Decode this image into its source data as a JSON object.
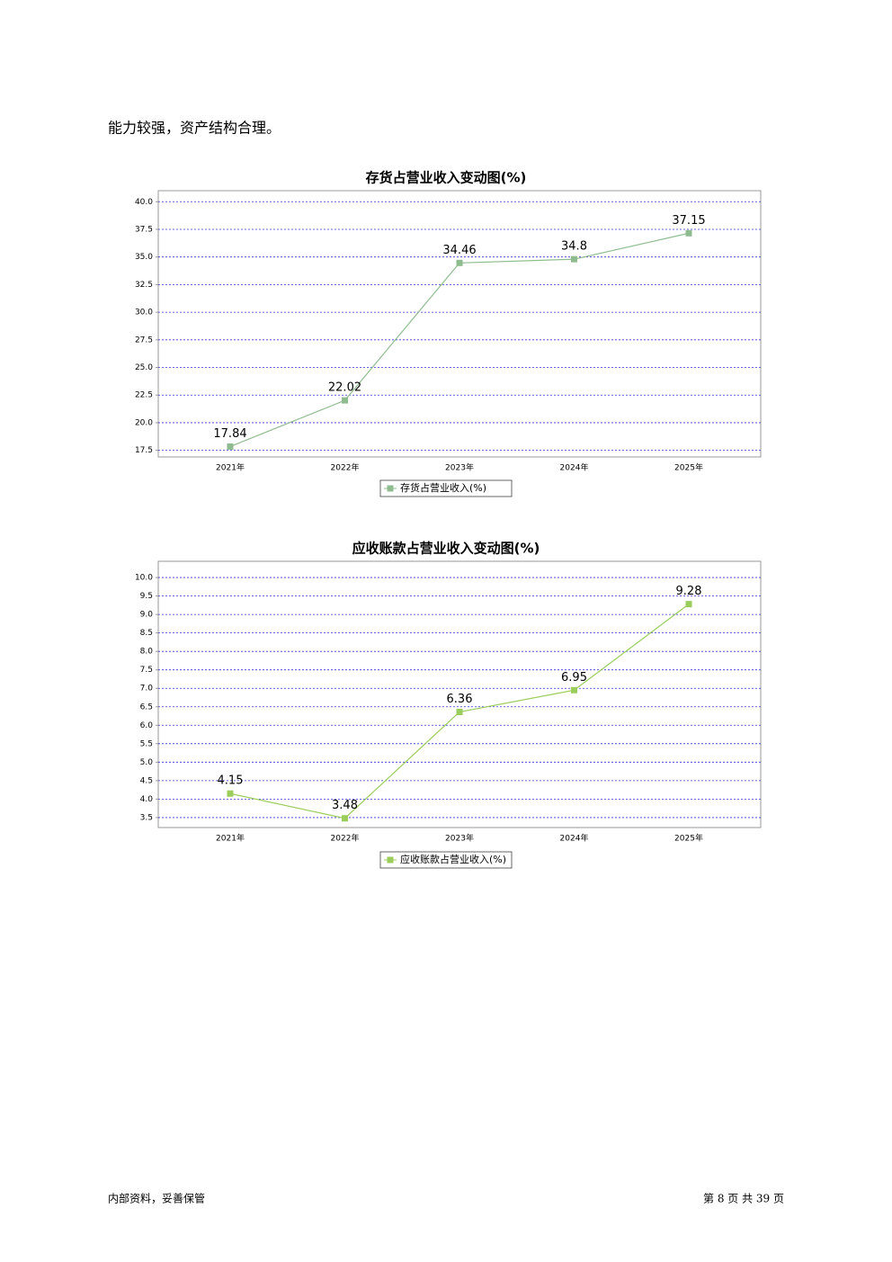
{
  "body": {
    "text": "能力较强，资产结构合理。"
  },
  "chart_data": [
    {
      "type": "line",
      "title": "存货占营业收入变动图(%)",
      "categories": [
        "2021年",
        "2022年",
        "2023年",
        "2024年",
        "2025年"
      ],
      "series": [
        {
          "name": "存货占营业收入(%)",
          "color": "#8fbc8f",
          "values": [
            17.84,
            22.02,
            34.46,
            34.8,
            37.15
          ]
        }
      ],
      "ylim": [
        16.9,
        41.0
      ],
      "yticks": [
        17.5,
        {
          "value": 20,
          "label": "20.0"
        },
        22.5,
        {
          "value": 25,
          "label": "25.0"
        },
        27.5,
        {
          "value": 30,
          "label": "30.0"
        },
        32.5,
        {
          "value": 35,
          "label": "35.0"
        },
        37.5,
        {
          "value": 40,
          "label": "40.0"
        }
      ],
      "grid": true,
      "legend": "bottom"
    },
    {
      "type": "line",
      "title": "应收账款占营业收入变动图(%)",
      "categories": [
        "2021年",
        "2022年",
        "2023年",
        "2024年",
        "2025年"
      ],
      "series": [
        {
          "name": "应收账款占营业收入(%)",
          "color": "#9acd59",
          "values": [
            4.15,
            3.48,
            6.36,
            6.95,
            9.28
          ]
        }
      ],
      "ylim": [
        3.23,
        10.44
      ],
      "yticks": [
        3.5,
        {
          "value": 4,
          "label": "4.0"
        },
        4.5,
        {
          "value": 5,
          "label": "5.0"
        },
        5.5,
        {
          "value": 6,
          "label": "6.0"
        },
        6.5,
        {
          "value": 7,
          "label": "7.0"
        },
        7.5,
        {
          "value": 8,
          "label": "8.0"
        },
        8.5,
        {
          "value": 9,
          "label": "9.0"
        },
        9.5,
        {
          "value": 10,
          "label": "10.0"
        }
      ],
      "grid": true,
      "legend": "bottom"
    }
  ],
  "footer": {
    "left": "内部资料，妥善保管",
    "right": "第 8 页  共 39 页"
  }
}
